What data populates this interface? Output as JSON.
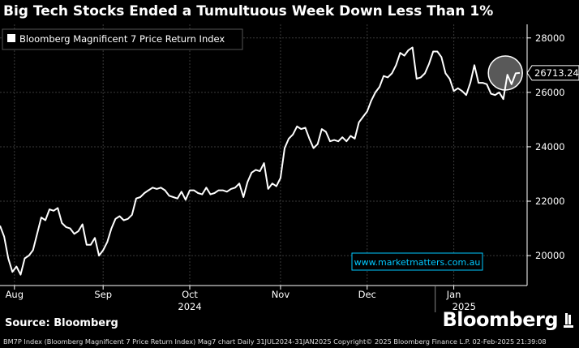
{
  "title": "Big Tech Stocks Ended a Tumultuous Week Down Less Than 1%",
  "source": "Source: Bloomberg",
  "brand": "Bloomberg",
  "watermark": "www.marketmatters.com.au",
  "footer": "BM7P Index (Bloomberg Magnificent 7 Price Return Index) Mag7 chart  Daily 31JUL2024-31JAN2025 Copyright© 2025 Bloomberg Finance L.P.  02-Feb-2025 21:39:08",
  "colors": {
    "background": "#000000",
    "line": "#ffffff",
    "watermark": "#00c8ff"
  },
  "chart_data": {
    "type": "line",
    "title": "Big Tech Stocks Ended a Tumultuous Week Down Less Than 1%",
    "legend": {
      "label": "Bloomberg Magnificent 7 Price Return Index",
      "position": "top-left"
    },
    "last_value_label": "26713.24",
    "ylim": [
      18900,
      28500
    ],
    "yticks": [
      20000,
      22000,
      24000,
      26000,
      28000
    ],
    "grid": true,
    "month_ticks": [
      {
        "label": "Aug",
        "x": 3.5
      },
      {
        "label": "Sep",
        "x": 25
      },
      {
        "label": "Oct",
        "x": 46
      },
      {
        "label": "Nov",
        "x": 68
      },
      {
        "label": "Dec",
        "x": 89
      },
      {
        "label": "Jan",
        "x": 110
      }
    ],
    "year_labels": [
      {
        "label": "2024",
        "x": 46
      },
      {
        "label": "2025",
        "x": 112.5
      }
    ],
    "highlight_circle_center_x": 122.5,
    "x": [
      0,
      1,
      2,
      3,
      4,
      5,
      6,
      7,
      8,
      9,
      10,
      11,
      12,
      13,
      14,
      15,
      16,
      17,
      18,
      19,
      20,
      21,
      22,
      23,
      24,
      25,
      26,
      27,
      28,
      29,
      30,
      31,
      32,
      33,
      34,
      35,
      36,
      37,
      38,
      39,
      40,
      41,
      42,
      43,
      44,
      45,
      46,
      47,
      48,
      49,
      50,
      51,
      52,
      53,
      54,
      55,
      56,
      57,
      58,
      59,
      60,
      61,
      62,
      63,
      64,
      65,
      66,
      67,
      68,
      69,
      70,
      71,
      72,
      73,
      74,
      75,
      76,
      77,
      78,
      79,
      80,
      81,
      82,
      83,
      84,
      85,
      86,
      87,
      88,
      89,
      90,
      91,
      92,
      93,
      94,
      95,
      96,
      97,
      98,
      99,
      100,
      101,
      102,
      103,
      104,
      105,
      106,
      107,
      108,
      109,
      110,
      111,
      112,
      113,
      114,
      115,
      116,
      117,
      118,
      119,
      120,
      121,
      122,
      123,
      124,
      125,
      126
    ],
    "values": [
      21100,
      20700,
      19900,
      19400,
      19600,
      19300,
      19900,
      20000,
      20200,
      20800,
      21400,
      21300,
      21700,
      21650,
      21750,
      21200,
      21050,
      21000,
      20800,
      20900,
      21150,
      20400,
      20400,
      20650,
      20000,
      20200,
      20500,
      21000,
      21350,
      21450,
      21300,
      21350,
      21500,
      22100,
      22150,
      22300,
      22400,
      22500,
      22450,
      22500,
      22400,
      22200,
      22150,
      22100,
      22350,
      22050,
      22400,
      22400,
      22300,
      22250,
      22500,
      22250,
      22300,
      22400,
      22400,
      22350,
      22450,
      22500,
      22650,
      22150,
      22700,
      23050,
      23150,
      23100,
      23400,
      22450,
      22650,
      22550,
      22850,
      23950,
      24300,
      24450,
      24750,
      24650,
      24700,
      24300,
      23950,
      24100,
      24650,
      24550,
      24200,
      24250,
      24200,
      24350,
      24200,
      24400,
      24300,
      24900,
      25100,
      25300,
      25700,
      26000,
      26200,
      26600,
      26550,
      26700,
      27000,
      27450,
      27350,
      27550,
      27650,
      26500,
      26550,
      26700,
      27050,
      27500,
      27500,
      27300,
      26700,
      26500,
      26050,
      26150,
      26050,
      25900,
      26350,
      27000,
      26350,
      26350,
      26300,
      25950,
      25900,
      26000,
      25750,
      26650,
      26300,
      26700,
      26713.24
    ]
  }
}
